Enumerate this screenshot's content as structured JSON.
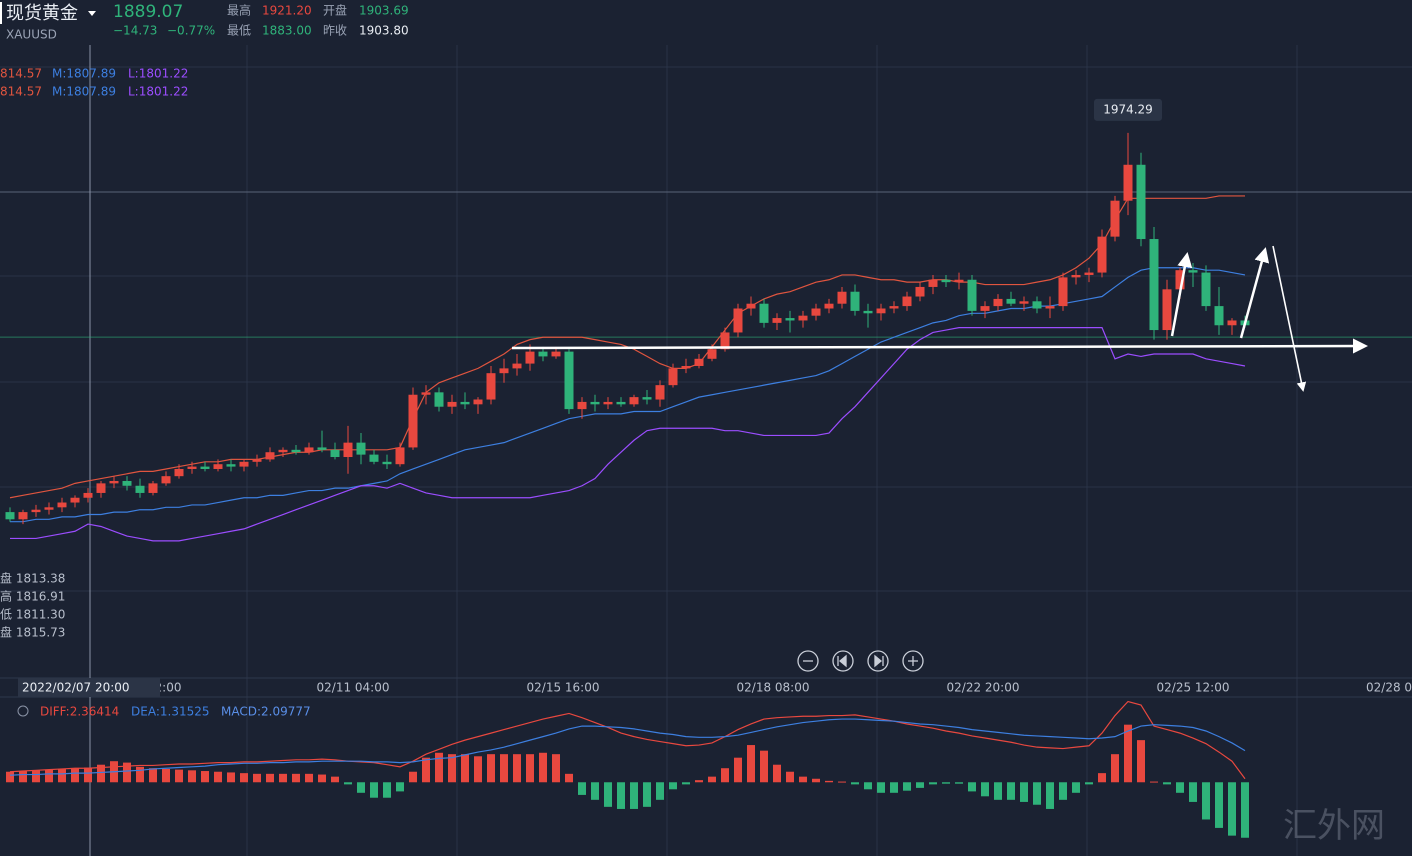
{
  "header": {
    "name": "现货黄金",
    "symbol": "XAUUSD",
    "price": 1889.07,
    "change": "−14.73",
    "change_pct": "−0.77%",
    "stats": [
      [
        "最高",
        "1921.20"
      ],
      [
        "开盘",
        "1903.69"
      ],
      [
        "最低",
        "1883.00"
      ],
      [
        "昨收",
        "1903.80"
      ]
    ]
  },
  "indicator_lines": [
    [
      "814.57",
      "M:1807.89",
      "L:1801.22"
    ],
    [
      "814.57",
      "M:1807.89",
      "L:1801.22"
    ]
  ],
  "crosshair": {
    "time": "2022/02/07 20:00",
    "ohlc": [
      "盘 1813.38",
      "高 1816.91",
      "低 1811.30",
      "盘 1815.73"
    ]
  },
  "x_labels": [
    "2:00",
    "02/11 04:00",
    "02/15 16:00",
    "02/18 08:00",
    "02/22 20:00",
    "02/25 12:00",
    "02/28 0"
  ],
  "watermark": "汇外网",
  "chart_data": {
    "type": "candlestick",
    "ylim": [
      1748,
      2011
    ],
    "up_color": "#e8483f",
    "down_color": "#2fb37a",
    "annotation": "1974.29",
    "candles": [
      [
        1816,
        1818,
        1812,
        1813
      ],
      [
        1813,
        1817,
        1811,
        1816
      ],
      [
        1816,
        1819,
        1814,
        1817
      ],
      [
        1817,
        1820,
        1815,
        1818
      ],
      [
        1818,
        1822,
        1816,
        1820
      ],
      [
        1820,
        1823,
        1818,
        1822
      ],
      [
        1822,
        1826,
        1820,
        1824
      ],
      [
        1824,
        1829,
        1822,
        1828
      ],
      [
        1828,
        1831,
        1826,
        1829
      ],
      [
        1829,
        1831,
        1825,
        1827
      ],
      [
        1827,
        1830,
        1822,
        1824
      ],
      [
        1824,
        1829,
        1823,
        1828
      ],
      [
        1828,
        1833,
        1827,
        1831
      ],
      [
        1831,
        1836,
        1830,
        1834
      ],
      [
        1834,
        1837,
        1832,
        1835
      ],
      [
        1835,
        1837,
        1833,
        1834
      ],
      [
        1834,
        1838,
        1833,
        1836
      ],
      [
        1836,
        1838,
        1833,
        1835
      ],
      [
        1835,
        1838,
        1833,
        1837
      ],
      [
        1837,
        1840,
        1835,
        1838
      ],
      [
        1838,
        1843,
        1837,
        1841
      ],
      [
        1841,
        1843,
        1839,
        1842
      ],
      [
        1842,
        1844,
        1840,
        1841
      ],
      [
        1841,
        1845,
        1840,
        1843
      ],
      [
        1843,
        1850,
        1841,
        1842
      ],
      [
        1842,
        1845,
        1838,
        1839
      ],
      [
        1839,
        1852,
        1832,
        1845
      ],
      [
        1845,
        1849,
        1836,
        1840
      ],
      [
        1840,
        1842,
        1836,
        1837
      ],
      [
        1837,
        1840,
        1834,
        1836
      ],
      [
        1836,
        1845,
        1835,
        1843
      ],
      [
        1843,
        1868,
        1842,
        1865
      ],
      [
        1865,
        1869,
        1861,
        1866
      ],
      [
        1866,
        1868,
        1858,
        1860
      ],
      [
        1860,
        1865,
        1857,
        1862
      ],
      [
        1862,
        1866,
        1859,
        1861
      ],
      [
        1861,
        1864,
        1857,
        1863
      ],
      [
        1863,
        1877,
        1861,
        1874
      ],
      [
        1874,
        1880,
        1870,
        1876
      ],
      [
        1876,
        1882,
        1873,
        1878
      ],
      [
        1878,
        1886,
        1875,
        1883
      ],
      [
        1883,
        1885,
        1879,
        1881
      ],
      [
        1881,
        1885,
        1880,
        1883
      ],
      [
        1883,
        1884,
        1857,
        1859
      ],
      [
        1859,
        1864,
        1855,
        1862
      ],
      [
        1862,
        1865,
        1858,
        1861
      ],
      [
        1861,
        1864,
        1859,
        1862
      ],
      [
        1862,
        1864,
        1860,
        1861
      ],
      [
        1861,
        1865,
        1860,
        1864
      ],
      [
        1864,
        1867,
        1861,
        1863
      ],
      [
        1863,
        1871,
        1860,
        1869
      ],
      [
        1869,
        1878,
        1868,
        1876
      ],
      [
        1876,
        1880,
        1874,
        1877
      ],
      [
        1877,
        1882,
        1876,
        1880
      ],
      [
        1880,
        1886,
        1879,
        1884
      ],
      [
        1884,
        1893,
        1883,
        1891
      ],
      [
        1891,
        1903,
        1889,
        1901
      ],
      [
        1901,
        1906,
        1898,
        1903
      ],
      [
        1903,
        1905,
        1893,
        1895
      ],
      [
        1895,
        1899,
        1892,
        1897
      ],
      [
        1897,
        1900,
        1891,
        1896
      ],
      [
        1896,
        1900,
        1893,
        1898
      ],
      [
        1898,
        1903,
        1896,
        1901
      ],
      [
        1901,
        1905,
        1899,
        1903
      ],
      [
        1903,
        1910,
        1901,
        1908
      ],
      [
        1908,
        1911,
        1898,
        1900
      ],
      [
        1900,
        1903,
        1893,
        1899
      ],
      [
        1899,
        1903,
        1896,
        1901
      ],
      [
        1901,
        1904,
        1899,
        1902
      ],
      [
        1902,
        1908,
        1900,
        1906
      ],
      [
        1906,
        1912,
        1904,
        1910
      ],
      [
        1910,
        1915,
        1907,
        1913
      ],
      [
        1913,
        1915,
        1910,
        1912
      ],
      [
        1912,
        1916,
        1909,
        1913
      ],
      [
        1913,
        1915,
        1898,
        1900
      ],
      [
        1900,
        1904,
        1897,
        1902
      ],
      [
        1902,
        1907,
        1900,
        1905
      ],
      [
        1905,
        1908,
        1902,
        1903
      ],
      [
        1903,
        1906,
        1900,
        1904
      ],
      [
        1904,
        1906,
        1899,
        1901
      ],
      [
        1901,
        1906,
        1897,
        1902
      ],
      [
        1902,
        1916,
        1900,
        1914
      ],
      [
        1914,
        1917,
        1911,
        1915
      ],
      [
        1915,
        1918,
        1912,
        1916
      ],
      [
        1916,
        1934,
        1914,
        1931
      ],
      [
        1931,
        1948,
        1929,
        1946
      ],
      [
        1946,
        1974.29,
        1940,
        1961
      ],
      [
        1961,
        1966,
        1927,
        1930
      ],
      [
        1930,
        1935,
        1888,
        1892
      ],
      [
        1892,
        1913,
        1888,
        1909
      ],
      [
        1909,
        1918,
        1905,
        1917
      ],
      [
        1917,
        1920,
        1910,
        1916
      ],
      [
        1916,
        1919,
        1900,
        1902
      ],
      [
        1902,
        1910,
        1890,
        1894
      ],
      [
        1894,
        1897,
        1890,
        1896
      ],
      [
        1896,
        1898,
        1893,
        1894
      ]
    ],
    "bands": [
      {
        "color": "#e0553f",
        "values": [
          1822,
          1823,
          1824,
          1825,
          1826,
          1828,
          1829,
          1830,
          1831,
          1832,
          1833,
          1833,
          1834,
          1835,
          1836,
          1837,
          1837,
          1838,
          1838,
          1838,
          1839,
          1840,
          1841,
          1841,
          1842,
          1842,
          1842,
          1842,
          1842,
          1842,
          1843,
          1855,
          1866,
          1870,
          1872,
          1874,
          1876,
          1879,
          1882,
          1886,
          1888,
          1889,
          1889,
          1889,
          1889,
          1888,
          1887,
          1886,
          1884,
          1881,
          1878,
          1876,
          1876,
          1878,
          1885,
          1892,
          1899,
          1902,
          1905,
          1907,
          1908,
          1910,
          1912,
          1913,
          1915,
          1915,
          1914,
          1913,
          1913,
          1912,
          1912,
          1913,
          1913,
          1912,
          1912,
          1911,
          1911,
          1911,
          1911,
          1912,
          1913,
          1915,
          1918,
          1922,
          1928,
          1938,
          1947,
          1947,
          1947,
          1947,
          1947,
          1947,
          1947,
          1948,
          1948,
          1948
        ]
      },
      {
        "color": "#3d7fe0",
        "values": [
          1812,
          1812,
          1813,
          1813,
          1814,
          1814,
          1815,
          1815,
          1816,
          1816,
          1817,
          1817,
          1818,
          1818,
          1819,
          1819,
          1820,
          1821,
          1822,
          1822,
          1823,
          1823,
          1824,
          1825,
          1825,
          1826,
          1826,
          1827,
          1828,
          1829,
          1832,
          1834,
          1836,
          1838,
          1840,
          1842,
          1843,
          1844,
          1845,
          1847,
          1849,
          1851,
          1853,
          1855,
          1856,
          1857,
          1857,
          1857,
          1858,
          1858,
          1858,
          1860,
          1862,
          1864,
          1865,
          1866,
          1867,
          1868,
          1869,
          1870,
          1871,
          1872,
          1873,
          1875,
          1878,
          1881,
          1884,
          1887,
          1889,
          1891,
          1893,
          1895,
          1896,
          1898,
          1899,
          1899,
          1900,
          1901,
          1901,
          1902,
          1902,
          1903,
          1904,
          1905,
          1906,
          1910,
          1914,
          1917,
          1918,
          1918,
          1918,
          1918,
          1917,
          1917,
          1916,
          1915
        ]
      },
      {
        "color": "#9b4dff",
        "values": [
          1805,
          1805,
          1805,
          1806,
          1807,
          1808,
          1811,
          1810,
          1808,
          1806,
          1805,
          1804,
          1804,
          1804,
          1805,
          1806,
          1807,
          1808,
          1809,
          1811,
          1813,
          1815,
          1817,
          1819,
          1821,
          1823,
          1825,
          1827,
          1827,
          1826,
          1828,
          1826,
          1824,
          1823,
          1822,
          1822,
          1822,
          1822,
          1822,
          1822,
          1822,
          1823,
          1824,
          1825,
          1827,
          1830,
          1836,
          1841,
          1846,
          1850,
          1851,
          1851,
          1851,
          1851,
          1851,
          1850,
          1850,
          1849,
          1848,
          1848,
          1848,
          1848,
          1848,
          1849,
          1855,
          1860,
          1866,
          1872,
          1878,
          1884,
          1888,
          1891,
          1892,
          1893,
          1893,
          1893,
          1893,
          1893,
          1893,
          1893,
          1893,
          1893,
          1893,
          1893,
          1893,
          1880,
          1882,
          1881,
          1882,
          1882,
          1882,
          1882,
          1880,
          1879,
          1878,
          1877
        ]
      }
    ],
    "macd": {
      "labels": [
        "DIFF:2.36414",
        "DEA:1.31525",
        "MACD:2.09777"
      ],
      "ylim": [
        -10.5,
        12
      ],
      "diff": {
        "color": "#e8483f",
        "values": [
          1.5,
          1.6,
          1.7,
          1.8,
          1.9,
          2.0,
          2.0,
          2.1,
          2.2,
          2.3,
          2.4,
          2.4,
          2.5,
          2.6,
          2.6,
          2.7,
          2.8,
          2.8,
          2.9,
          2.9,
          3.0,
          3.1,
          3.2,
          3.2,
          3.3,
          3.2,
          3.0,
          2.9,
          2.8,
          2.5,
          2.2,
          3.0,
          4.0,
          4.7,
          5.4,
          6.0,
          6.5,
          7.0,
          7.5,
          8.0,
          8.5,
          9.0,
          9.4,
          9.8,
          9.2,
          8.5,
          7.8,
          7.0,
          6.5,
          6.1,
          5.8,
          5.5,
          5.2,
          5.3,
          5.6,
          6.5,
          7.5,
          8.3,
          9.0,
          9.2,
          9.3,
          9.4,
          9.4,
          9.5,
          9.5,
          9.6,
          9.3,
          9.0,
          8.7,
          8.3,
          8.0,
          7.7,
          7.3,
          7.0,
          6.6,
          6.3,
          6.0,
          5.7,
          5.3,
          5.0,
          4.9,
          4.8,
          5.0,
          5.2,
          7.0,
          9.5,
          11.5,
          11.0,
          8.0,
          7.5,
          7.0,
          6.3,
          5.5,
          4.3,
          3.0,
          0.5
        ]
      },
      "dea": {
        "color": "#3d7fe0",
        "values": [
          1.0,
          1.1,
          1.1,
          1.2,
          1.2,
          1.3,
          1.3,
          1.4,
          1.5,
          1.6,
          1.7,
          1.9,
          2.0,
          2.1,
          2.2,
          2.3,
          2.5,
          2.6,
          2.7,
          2.7,
          2.8,
          2.8,
          2.9,
          2.9,
          3.0,
          3.0,
          3.0,
          3.0,
          2.9,
          2.9,
          2.8,
          2.9,
          3.2,
          3.4,
          3.5,
          3.9,
          4.3,
          4.6,
          5.0,
          5.5,
          6.0,
          6.5,
          7.0,
          7.6,
          8.0,
          8.0,
          7.9,
          7.8,
          7.6,
          7.3,
          7.0,
          6.8,
          6.5,
          6.4,
          6.4,
          6.5,
          6.7,
          7.1,
          7.5,
          7.9,
          8.2,
          8.5,
          8.7,
          8.9,
          9.0,
          9.0,
          8.9,
          8.8,
          8.7,
          8.5,
          8.3,
          8.2,
          8.0,
          7.8,
          7.5,
          7.3,
          7.1,
          6.9,
          6.7,
          6.6,
          6.5,
          6.4,
          6.3,
          6.2,
          6.3,
          6.5,
          7.3,
          8.0,
          8.2,
          8.1,
          8.0,
          7.8,
          7.3,
          6.5,
          5.6,
          4.5
        ]
      },
      "hist": [
        1.5,
        1.6,
        1.7,
        1.8,
        1.9,
        2.0,
        2.1,
        2.5,
        3.0,
        2.8,
        2.2,
        2.0,
        1.9,
        1.8,
        1.7,
        1.6,
        1.5,
        1.4,
        1.3,
        1.2,
        1.2,
        1.2,
        1.2,
        1.2,
        1.1,
        0.8,
        -0.3,
        -1.5,
        -2.2,
        -2.2,
        -1.3,
        1.5,
        3.5,
        4.2,
        4.0,
        4.0,
        3.7,
        4.0,
        4.0,
        4.0,
        4.0,
        4.2,
        4.0,
        1.2,
        -1.8,
        -2.5,
        -3.5,
        -3.8,
        -3.8,
        -3.5,
        -2.5,
        -1.0,
        -0.3,
        0.3,
        0.8,
        2.0,
        3.5,
        5.3,
        4.5,
        2.5,
        1.5,
        0.8,
        0.5,
        0.2,
        0.1,
        -0.3,
        -1.0,
        -1.5,
        -1.5,
        -1.2,
        -0.8,
        -0.3,
        -0.2,
        -0.2,
        -1.3,
        -2.0,
        -2.5,
        -2.5,
        -2.8,
        -3.2,
        -3.8,
        -2.5,
        -1.5,
        -0.3,
        1.3,
        4.0,
        8.2,
        6.0,
        0.1,
        -0.3,
        -1.5,
        -2.8,
        -5.3,
        -6.5,
        -7.6,
        -7.9
      ]
    }
  }
}
